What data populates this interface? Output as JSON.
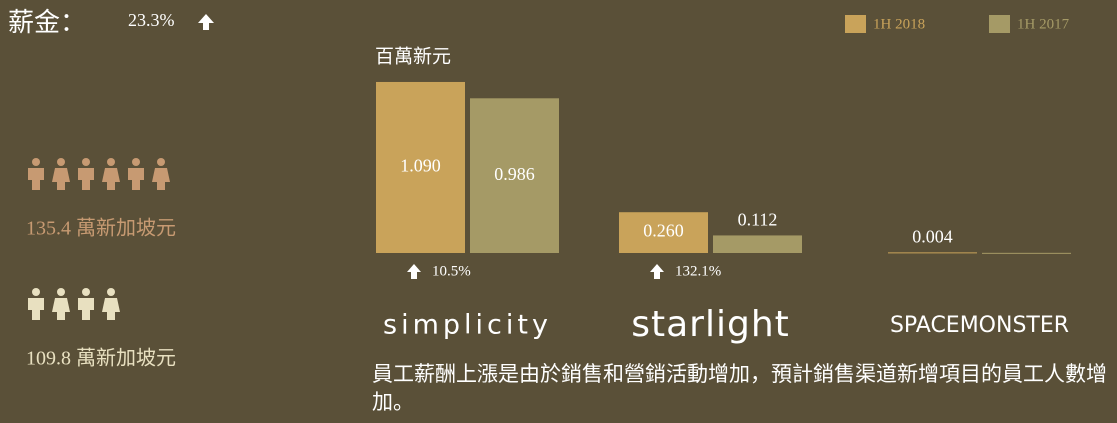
{
  "chart_data": {
    "type": "bar",
    "header": "薪金：",
    "header_change": "23.3%",
    "ylabel": "百萬新元",
    "categories": [
      "simplicity",
      "starlight",
      "SPACEMONSTER"
    ],
    "series": [
      {
        "name": "1H 2018",
        "color": "#c9a35a",
        "values": [
          1.09,
          0.26,
          0.004
        ],
        "value_labels": [
          "1.090",
          "0.260",
          "0.004"
        ]
      },
      {
        "name": "1H 2017",
        "color": "#a59a66",
        "values": [
          0.986,
          0.112,
          0.001
        ],
        "value_labels": [
          "0.986",
          "0.112",
          null
        ]
      }
    ],
    "growth": [
      "10.5%",
      "132.1%",
      null
    ],
    "ylim": [
      0,
      1.1
    ],
    "legend": "top-right",
    "people": [
      {
        "label": "135.4 萬新加坡元",
        "count": 6,
        "color": "#c79a72"
      },
      {
        "label": "109.8 萬新加坡元",
        "count": 4,
        "color": "#e8e0c0"
      }
    ],
    "note": "員工薪酬上漲是由於銷售和營銷活動增加，預計銷售渠道新增項目的員工人數增加。"
  }
}
